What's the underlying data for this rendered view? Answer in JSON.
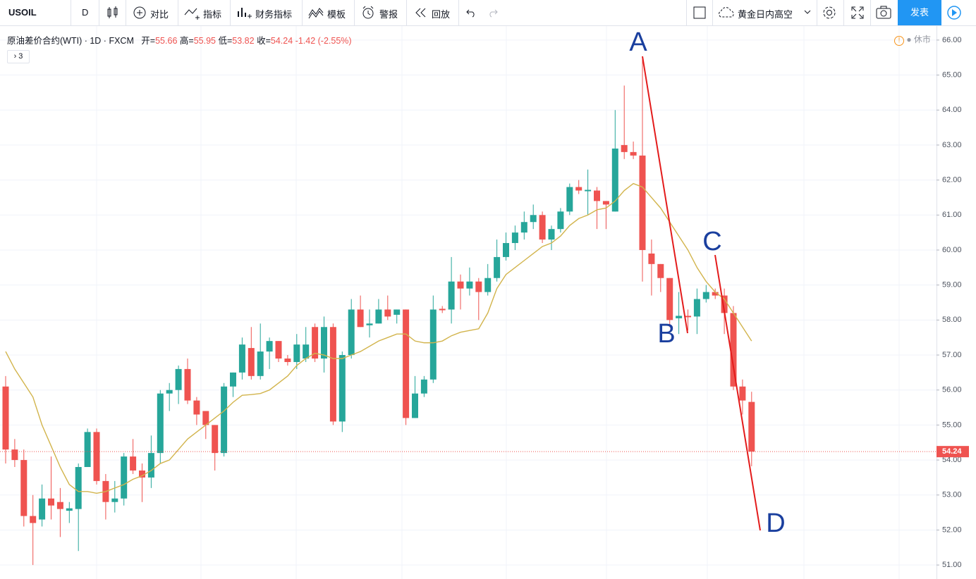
{
  "toolbar": {
    "symbol": "USOIL",
    "interval": "D",
    "compare": "对比",
    "indicators": "指标",
    "financials": "财务指标",
    "templates": "模板",
    "alert": "警报",
    "replay": "回放",
    "layout": "黄金日内高空",
    "publish": "发表"
  },
  "legend": {
    "name": "原油差价合约(WTI)",
    "interval": "1D",
    "source": "FXCM",
    "open_label": "开",
    "open": "55.66",
    "high_label": "高",
    "high": "55.95",
    "low_label": "低",
    "low": "53.82",
    "close_label": "收",
    "close": "54.24",
    "change": "-1.42",
    "change_pct": "(-2.55%)",
    "collapsed_count": "3",
    "market_status": "休市"
  },
  "chart_data": {
    "type": "candlestick",
    "up_color": "#26a69a",
    "down_color": "#ef5350",
    "open": [
      56.1,
      54.3,
      54.0,
      52.4,
      52.3,
      52.9,
      52.8,
      52.55,
      52.6,
      53.8,
      54.8,
      53.4,
      52.8,
      52.9,
      54.1,
      53.7,
      53.5,
      54.2,
      55.9,
      56.0,
      56.6,
      55.7,
      55.4,
      55.0,
      54.2,
      56.1,
      56.5,
      57.2,
      56.4,
      57.1,
      57.4,
      56.9,
      56.8,
      56.9,
      57.8,
      56.9,
      57.8,
      55.1,
      57.0,
      58.3,
      57.85,
      57.9,
      58.3,
      58.15,
      58.3,
      55.2,
      55.9,
      56.3,
      58.32,
      58.3,
      59.1,
      58.9,
      59.1,
      58.8,
      59.2,
      59.8,
      60.2,
      60.5,
      60.8,
      61.0,
      60.3,
      60.6,
      61.1,
      61.8,
      61.68,
      61.7,
      61.4,
      61.1,
      63.0,
      62.8,
      62.7,
      59.9,
      59.6,
      59.2,
      58.05,
      58.12,
      58.1,
      58.6,
      58.8,
      58.7,
      58.2,
      56.1,
      55.66
    ],
    "high": [
      56.4,
      54.6,
      54.3,
      53.0,
      53.3,
      54.1,
      53.2,
      52.8,
      53.9,
      54.9,
      54.9,
      53.6,
      53.4,
      54.2,
      54.6,
      53.9,
      54.7,
      56.0,
      56.2,
      56.7,
      56.9,
      55.8,
      55.4,
      55.0,
      56.2,
      56.5,
      57.5,
      57.8,
      57.9,
      57.5,
      57.4,
      57.0,
      57.6,
      57.8,
      57.9,
      58.1,
      57.9,
      57.1,
      58.6,
      58.7,
      58.3,
      58.6,
      58.7,
      58.3,
      58.3,
      56.4,
      56.4,
      58.7,
      58.4,
      59.8,
      59.3,
      59.5,
      59.2,
      59.6,
      60.3,
      60.5,
      60.7,
      61.1,
      61.3,
      61.1,
      60.7,
      61.2,
      61.9,
      62.0,
      62.3,
      61.8,
      61.4,
      64.0,
      64.7,
      63.1,
      65.5,
      60.3,
      59.6,
      59.2,
      58.8,
      58.3,
      58.9,
      59.0,
      58.9,
      58.9,
      58.4,
      56.3,
      55.95
    ],
    "low": [
      53.9,
      53.8,
      52.1,
      51.0,
      52.1,
      52.3,
      51.8,
      52.2,
      51.4,
      53.8,
      53.3,
      52.3,
      52.5,
      52.7,
      53.6,
      52.8,
      53.2,
      53.9,
      55.4,
      55.6,
      55.6,
      55.0,
      54.6,
      53.7,
      54.1,
      55.8,
      56.3,
      56.3,
      56.3,
      56.6,
      56.8,
      56.7,
      56.6,
      56.8,
      56.8,
      56.5,
      55.0,
      54.8,
      56.9,
      57.8,
      57.5,
      57.9,
      58.0,
      57.9,
      55.0,
      55.2,
      55.8,
      56.2,
      58.2,
      57.9,
      58.3,
      58.7,
      58.0,
      58.7,
      59.1,
      59.7,
      60.0,
      60.3,
      60.6,
      60.2,
      60.0,
      60.5,
      61.0,
      61.6,
      61.0,
      60.6,
      60.6,
      61.1,
      62.6,
      62.6,
      59.1,
      58.7,
      58.8,
      57.8,
      57.6,
      57.7,
      57.6,
      58.5,
      58.6,
      57.6,
      56.0,
      55.3,
      53.82
    ],
    "close": [
      54.3,
      54.0,
      52.4,
      52.2,
      52.9,
      52.7,
      52.6,
      52.62,
      53.8,
      54.8,
      53.4,
      52.8,
      52.9,
      54.1,
      53.7,
      53.5,
      54.2,
      55.9,
      56.0,
      56.6,
      55.7,
      55.3,
      55.0,
      54.2,
      56.1,
      56.5,
      57.3,
      56.4,
      57.1,
      57.4,
      56.9,
      56.8,
      57.3,
      57.3,
      56.9,
      57.8,
      55.1,
      57.0,
      58.3,
      57.8,
      57.9,
      58.3,
      58.1,
      58.3,
      55.2,
      55.9,
      56.3,
      58.3,
      58.28,
      59.1,
      58.9,
      59.1,
      58.8,
      59.2,
      59.8,
      60.2,
      60.5,
      60.8,
      61.0,
      60.3,
      60.6,
      61.1,
      61.8,
      61.7,
      61.72,
      61.4,
      61.3,
      62.9,
      62.8,
      62.7,
      60.0,
      59.6,
      59.2,
      58.0,
      58.12,
      58.08,
      58.6,
      58.8,
      58.7,
      58.2,
      56.1,
      55.7,
      54.24
    ],
    "ma": {
      "color": "#d2b44c",
      "values": [
        57.1,
        56.6,
        56.2,
        55.8,
        55.0,
        54.4,
        53.8,
        53.3,
        53.1,
        53.1,
        53.05,
        53.1,
        53.2,
        53.3,
        53.45,
        53.55,
        53.7,
        53.9,
        54.0,
        54.3,
        54.6,
        54.8,
        55.0,
        55.2,
        55.4,
        55.65,
        55.85,
        55.87,
        55.9,
        56.0,
        56.2,
        56.4,
        56.7,
        56.9,
        57.05,
        57.0,
        56.9,
        56.9,
        57.0,
        57.1,
        57.25,
        57.4,
        57.5,
        57.6,
        57.6,
        57.4,
        57.35,
        57.35,
        57.4,
        57.55,
        57.65,
        57.7,
        57.75,
        58.2,
        58.9,
        59.3,
        59.5,
        59.7,
        59.9,
        60.1,
        60.2,
        60.4,
        60.7,
        60.9,
        61.0,
        61.15,
        61.2,
        61.4,
        61.7,
        61.9,
        61.8,
        61.5,
        61.2,
        60.8,
        60.4,
        60.0,
        59.5,
        59.1,
        58.8,
        58.6,
        58.2,
        57.8,
        57.4
      ]
    },
    "last_price": 54.24,
    "last_price_color": "#ef5350",
    "ylim": [
      50.6,
      66.4
    ],
    "yticks": [
      {
        "value": 51,
        "label": "51.00"
      },
      {
        "value": 52,
        "label": "52.00"
      },
      {
        "value": 53,
        "label": "53.00"
      },
      {
        "value": 54,
        "label": "54.00"
      },
      {
        "value": 55,
        "label": "55.00"
      },
      {
        "value": 56,
        "label": "56.00"
      },
      {
        "value": 57,
        "label": "57.00"
      },
      {
        "value": 58,
        "label": "58.00"
      },
      {
        "value": 59,
        "label": "59.00"
      },
      {
        "value": 60,
        "label": "60.00"
      },
      {
        "value": 61,
        "label": "61.00"
      },
      {
        "value": 62,
        "label": "62.00"
      },
      {
        "value": 63,
        "label": "63.00"
      },
      {
        "value": 64,
        "label": "64.00"
      },
      {
        "value": 65,
        "label": "65.00"
      },
      {
        "value": 66,
        "label": "66.00"
      }
    ],
    "grid": true,
    "annotations": [
      "A",
      "B",
      "C",
      "D"
    ]
  }
}
